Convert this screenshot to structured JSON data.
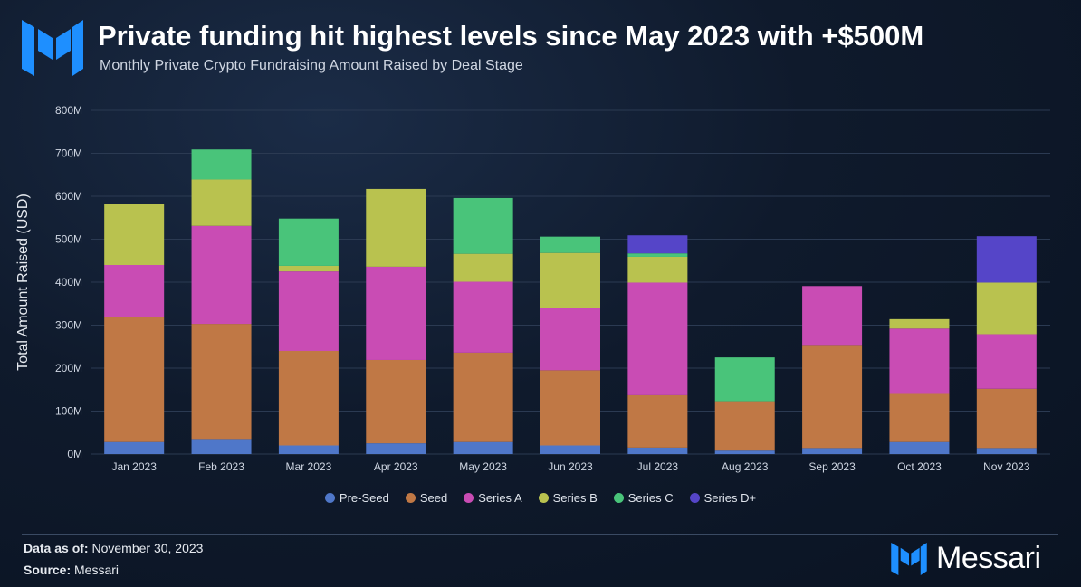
{
  "header": {
    "title": "Private funding hit highest levels since May 2023 with +$500M",
    "subtitle": "Monthly Private Crypto Fundraising Amount Raised by Deal Stage"
  },
  "footer": {
    "data_as_of_label": "Data as of:",
    "data_as_of_value": "November 30, 2023",
    "source_label": "Source:",
    "source_value": "Messari",
    "brand": "Messari"
  },
  "colors": {
    "accent": "#1e8fff",
    "text": "#ffffff"
  },
  "chart_data": {
    "type": "bar",
    "stacked": true,
    "categories": [
      "Jan 2023",
      "Feb 2023",
      "Mar 2023",
      "Apr 2023",
      "May 2023",
      "Jun 2023",
      "Jul 2023",
      "Aug 2023",
      "Sep 2023",
      "Oct 2023",
      "Nov 2023"
    ],
    "series": [
      {
        "name": "Pre-Seed",
        "color": "#4f77c9",
        "values": [
          28,
          35,
          20,
          25,
          28,
          20,
          15,
          8,
          14,
          28,
          14
        ]
      },
      {
        "name": "Seed",
        "color": "#c07845",
        "values": [
          292,
          268,
          220,
          194,
          208,
          175,
          122,
          115,
          240,
          112,
          138
        ]
      },
      {
        "name": "Series A",
        "color": "#c94cb4",
        "values": [
          120,
          228,
          185,
          217,
          165,
          145,
          262,
          0,
          137,
          152,
          127
        ]
      },
      {
        "name": "Series B",
        "color": "#b9c24f",
        "values": [
          142,
          108,
          13,
          181,
          65,
          128,
          60,
          0,
          0,
          22,
          120
        ]
      },
      {
        "name": "Series C",
        "color": "#49c47a",
        "values": [
          0,
          70,
          110,
          0,
          130,
          38,
          8,
          102,
          0,
          0,
          0
        ]
      },
      {
        "name": "Series D+",
        "color": "#5545c8",
        "values": [
          0,
          0,
          0,
          0,
          0,
          0,
          42,
          0,
          0,
          0,
          108
        ]
      }
    ],
    "ylabel": "Total Amount Raised (USD)",
    "xlabel": "",
    "ylim": [
      0,
      800
    ],
    "yticks": [
      0,
      100,
      200,
      300,
      400,
      500,
      600,
      700,
      800
    ],
    "ytick_labels": [
      "0M",
      "100M",
      "200M",
      "300M",
      "400M",
      "500M",
      "600M",
      "700M",
      "800M"
    ],
    "grid": true,
    "legend_position": "bottom-center"
  }
}
